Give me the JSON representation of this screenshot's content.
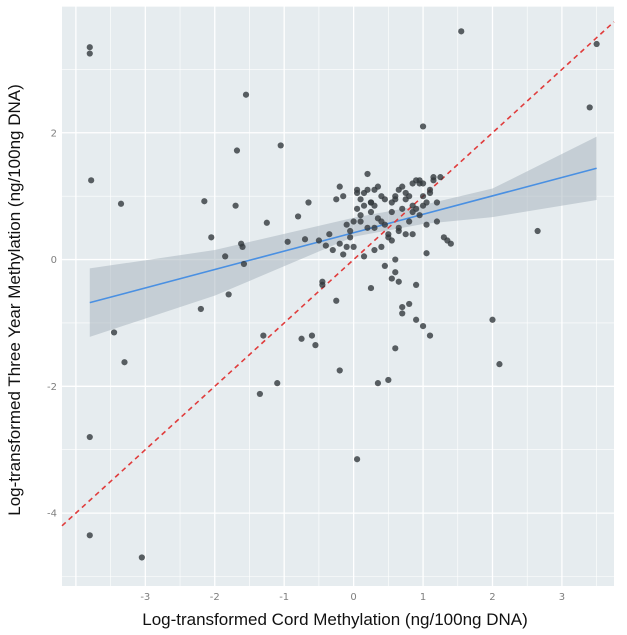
{
  "chart_data": {
    "type": "scatter",
    "xlabel": "Log-transformed Cord Methylation (ng/100ng DNA)",
    "ylabel": "Log-transformed Three Year Methylation (ng/100ng DNA)",
    "xlim": [
      -4.2,
      3.75
    ],
    "ylim": [
      -5.15,
      4.0
    ],
    "x_ticks": [
      -3,
      -2,
      -1,
      0,
      1,
      2,
      3
    ],
    "y_ticks": [
      -4,
      -2,
      0,
      2
    ],
    "x_tick_labels": [
      "-3",
      "-2",
      "-1",
      "0",
      "1",
      "2",
      "3"
    ],
    "y_tick_labels": [
      "-4",
      "-2",
      "0",
      "2"
    ],
    "grid": true,
    "colors": {
      "panel": "#e6ecef",
      "grid": "#ffffff",
      "points": "#333a3d",
      "fit_line": "#4a90e2",
      "ci_band": "#a9b6bf",
      "identity_line": "#e03c3c"
    },
    "fit_line": {
      "x": [
        -3.8,
        3.5
      ],
      "y": [
        -0.68,
        1.44
      ]
    },
    "ci_band": {
      "x": [
        -3.8,
        -2,
        0,
        1,
        2,
        3.5
      ],
      "lower": [
        -1.22,
        -0.57,
        0.36,
        0.56,
        0.67,
        0.94
      ],
      "upper": [
        -0.14,
        0.15,
        0.66,
        0.86,
        1.12,
        1.94
      ]
    },
    "identity_line": {
      "x": [
        -4.2,
        3.75
      ],
      "y": [
        -4.2,
        3.75
      ]
    },
    "points": {
      "x": [
        -3.8,
        -3.8,
        -3.78,
        -3.8,
        -3.8,
        -3.45,
        -3.35,
        -3.3,
        -3.05,
        -2.2,
        -2.15,
        -2.05,
        -1.85,
        -1.8,
        -1.7,
        -1.68,
        -1.62,
        -1.6,
        -1.58,
        -1.55,
        -1.35,
        -1.3,
        -1.25,
        -1.1,
        -1.05,
        -0.95,
        -0.8,
        -0.75,
        -0.7,
        -0.65,
        -0.6,
        -0.55,
        -0.5,
        -0.45,
        -0.45,
        -0.4,
        -0.35,
        -0.3,
        -0.25,
        -0.2,
        -0.15,
        -0.1,
        -0.05,
        0.0,
        0.05,
        0.1,
        0.15,
        0.2,
        0.25,
        0.3,
        0.35,
        0.4,
        0.45,
        0.5,
        0.55,
        0.6,
        0.65,
        0.7,
        0.75,
        0.8,
        0.85,
        0.9,
        0.95,
        1.0,
        1.05,
        1.1,
        1.15,
        1.2,
        1.25,
        1.3,
        -0.2,
        -0.1,
        0.0,
        0.1,
        0.2,
        0.3,
        0.4,
        0.5,
        0.6,
        0.7,
        0.8,
        0.9,
        1.0,
        1.1,
        1.2,
        -0.15,
        -0.05,
        0.05,
        0.15,
        0.25,
        0.35,
        0.45,
        0.55,
        0.65,
        0.75,
        0.85,
        0.95,
        1.05,
        1.15,
        0.1,
        0.2,
        0.3,
        0.55,
        0.65,
        0.75,
        0.85,
        0.95,
        1.0,
        1.05,
        0.15,
        0.25,
        0.45,
        0.6,
        0.7,
        0.8,
        0.9,
        1.0,
        1.1,
        0.05,
        0.35,
        0.5,
        0.6,
        0.7,
        0.9,
        1.0,
        1.35,
        1.4,
        1.55,
        2.0,
        2.1,
        2.65,
        3.4,
        3.5,
        0.05,
        0.25,
        0.4,
        0.55,
        0.65,
        0.85,
        -0.2,
        -0.25,
        0.3,
        0.6
      ],
      "y": [
        3.35,
        3.25,
        1.25,
        -2.8,
        -4.35,
        -1.15,
        0.88,
        -1.62,
        -4.7,
        -0.78,
        0.92,
        0.35,
        0.05,
        -0.55,
        0.85,
        1.72,
        0.25,
        0.2,
        -0.07,
        2.6,
        -2.12,
        -1.2,
        0.58,
        -1.95,
        1.8,
        0.28,
        0.68,
        -1.25,
        0.32,
        0.9,
        -1.2,
        -1.35,
        0.3,
        -0.35,
        -0.4,
        0.22,
        0.4,
        0.15,
        -0.65,
        -1.75,
        0.08,
        0.2,
        0.45,
        0.6,
        1.05,
        0.95,
        0.85,
        1.1,
        0.9,
        0.5,
        1.15,
        0.2,
        0.55,
        0.35,
        0.9,
        1.0,
        1.1,
        0.8,
        0.95,
        0.6,
        1.2,
        1.25,
        0.7,
        1.0,
        0.9,
        1.05,
        1.25,
        0.6,
        1.3,
        0.35,
        0.25,
        0.55,
        0.2,
        0.6,
        1.35,
        1.1,
        1.0,
        0.4,
        0.95,
        1.15,
        1.0,
        0.8,
        1.2,
        1.1,
        0.9,
        1.0,
        0.35,
        0.8,
        1.05,
        0.75,
        0.65,
        0.95,
        0.3,
        0.45,
        1.05,
        0.85,
        1.2,
        0.55,
        1.3,
        0.7,
        0.5,
        0.85,
        -0.3,
        -0.35,
        0.4,
        0.75,
        1.25,
        0.85,
        0.1,
        0.05,
        -0.45,
        -0.1,
        -0.2,
        -0.85,
        -0.7,
        -0.4,
        -1.05,
        -1.2,
        -3.15,
        -1.95,
        -1.9,
        -1.4,
        -0.75,
        -0.95,
        2.1,
        0.3,
        0.25,
        3.6,
        -0.95,
        -1.65,
        0.45,
        2.4,
        3.4,
        1.1,
        0.9,
        0.6,
        0.75,
        0.5,
        0.4,
        1.15,
        0.95,
        0.15,
        0.0
      ]
    }
  }
}
